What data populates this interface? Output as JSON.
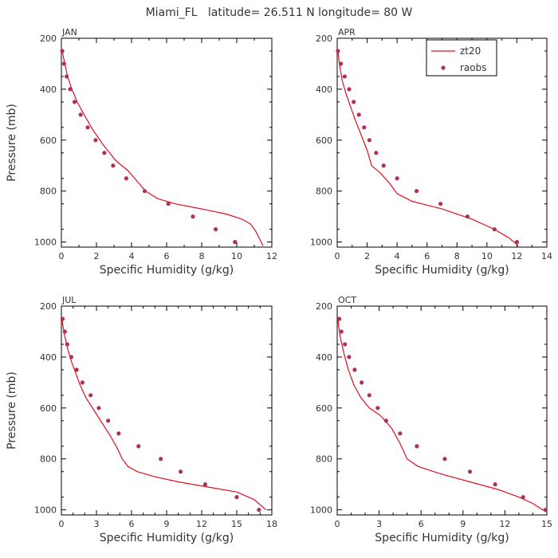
{
  "title": "Miami_FL   latitude= 26.511 N longitude= 80 W",
  "colors": {
    "model": "#e0101e",
    "obs": "#b0305a",
    "axis": "#000000"
  },
  "legend": [
    {
      "label": "zt20",
      "kind": "line"
    },
    {
      "label": "raobs",
      "kind": "marker"
    }
  ],
  "chart_data": [
    {
      "type": "line",
      "panel": "JAN",
      "xlabel": "Specific Humidity (g/kg)",
      "ylabel": "Pressure (mb)",
      "xlim": [
        0,
        12
      ],
      "xticks": [
        0,
        2,
        4,
        6,
        8,
        10,
        12
      ],
      "ylim": [
        200,
        1020
      ],
      "yticks": [
        200,
        400,
        600,
        800,
        1000
      ],
      "yreversed": true,
      "series": [
        {
          "name": "zt20",
          "kind": "line",
          "x": [
            0.05,
            0.1,
            0.2,
            0.35,
            0.6,
            0.9,
            1.3,
            1.8,
            2.4,
            3.1,
            3.8,
            4.3,
            4.8,
            5.5,
            6.5,
            8.0,
            9.4,
            10.3,
            10.8,
            11.1,
            11.5
          ],
          "y": [
            245,
            270,
            300,
            350,
            400,
            450,
            500,
            560,
            620,
            680,
            720,
            760,
            800,
            830,
            850,
            870,
            890,
            910,
            930,
            960,
            1015
          ]
        },
        {
          "name": "raobs",
          "kind": "scatter",
          "x": [
            0.05,
            0.15,
            0.3,
            0.5,
            0.75,
            1.1,
            1.5,
            1.95,
            2.45,
            2.95,
            3.7,
            4.75,
            6.1,
            7.5,
            8.8,
            9.9
          ],
          "y": [
            250,
            300,
            350,
            400,
            450,
            500,
            550,
            600,
            650,
            700,
            750,
            800,
            850,
            900,
            950,
            1000
          ]
        }
      ]
    },
    {
      "type": "line",
      "panel": "APR",
      "xlabel": "Specific Humidity (g/kg)",
      "ylabel": "",
      "xlim": [
        0,
        14
      ],
      "xticks": [
        0,
        2,
        4,
        6,
        8,
        10,
        12,
        14
      ],
      "ylim": [
        200,
        1020
      ],
      "yticks": [
        200,
        400,
        600,
        800,
        1000
      ],
      "yreversed": true,
      "series": [
        {
          "name": "zt20",
          "kind": "line",
          "x": [
            0.05,
            0.1,
            0.2,
            0.35,
            0.6,
            0.9,
            1.2,
            1.6,
            2.0,
            2.3,
            2.9,
            3.5,
            4.0,
            5.0,
            7.0,
            9.0,
            10.5,
            11.5,
            12.1
          ],
          "y": [
            250,
            280,
            320,
            370,
            420,
            470,
            520,
            580,
            640,
            700,
            730,
            770,
            810,
            840,
            870,
            910,
            950,
            985,
            1015
          ]
        },
        {
          "name": "raobs",
          "kind": "scatter",
          "x": [
            0.05,
            0.25,
            0.5,
            0.8,
            1.1,
            1.45,
            1.8,
            2.15,
            2.6,
            3.1,
            4.0,
            5.3,
            6.9,
            8.7,
            10.5,
            12.0
          ],
          "y": [
            250,
            300,
            350,
            400,
            450,
            500,
            550,
            600,
            650,
            700,
            750,
            800,
            850,
            900,
            950,
            1000
          ]
        }
      ]
    },
    {
      "type": "line",
      "panel": "JUL",
      "xlabel": "Specific Humidity (g/kg)",
      "ylabel": "Pressure (mb)",
      "xlim": [
        0,
        18
      ],
      "xticks": [
        0,
        3,
        6,
        9,
        12,
        15,
        18
      ],
      "ylim": [
        200,
        1020
      ],
      "yticks": [
        200,
        400,
        600,
        800,
        1000
      ],
      "yreversed": true,
      "series": [
        {
          "name": "zt20",
          "kind": "line",
          "x": [
            0.05,
            0.1,
            0.25,
            0.5,
            0.8,
            1.2,
            1.6,
            2.1,
            2.8,
            3.5,
            4.2,
            4.8,
            5.2,
            5.7,
            6.5,
            8.0,
            10.0,
            12.5,
            15.0,
            16.5,
            17.5
          ],
          "y": [
            245,
            270,
            310,
            360,
            410,
            460,
            510,
            560,
            610,
            660,
            710,
            760,
            800,
            830,
            850,
            870,
            890,
            910,
            930,
            960,
            1000
          ]
        },
        {
          "name": "raobs",
          "kind": "scatter",
          "x": [
            0.1,
            0.3,
            0.5,
            0.85,
            1.3,
            1.8,
            2.5,
            3.2,
            4.0,
            4.9,
            6.6,
            8.5,
            10.2,
            12.3,
            15.0,
            16.9
          ],
          "y": [
            250,
            300,
            350,
            400,
            450,
            500,
            550,
            600,
            650,
            700,
            750,
            800,
            850,
            900,
            950,
            1000
          ]
        }
      ]
    },
    {
      "type": "line",
      "panel": "OCT",
      "xlabel": "Specific Humidity (g/kg)",
      "ylabel": "",
      "xlim": [
        0,
        15
      ],
      "xticks": [
        0,
        3,
        6,
        9,
        12,
        15
      ],
      "ylim": [
        200,
        1020
      ],
      "yticks": [
        200,
        400,
        600,
        800,
        1000
      ],
      "yreversed": true,
      "series": [
        {
          "name": "zt20",
          "kind": "line",
          "x": [
            0.05,
            0.1,
            0.25,
            0.5,
            0.8,
            1.2,
            1.7,
            2.3,
            3.1,
            3.9,
            4.5,
            5.0,
            5.8,
            7.5,
            9.5,
            11.5,
            13.0,
            14.0,
            14.7
          ],
          "y": [
            250,
            280,
            330,
            390,
            450,
            510,
            560,
            600,
            630,
            680,
            740,
            800,
            830,
            860,
            890,
            920,
            950,
            975,
            1000
          ]
        },
        {
          "name": "raobs",
          "kind": "scatter",
          "x": [
            0.15,
            0.3,
            0.55,
            0.85,
            1.25,
            1.75,
            2.3,
            2.9,
            3.5,
            4.5,
            5.7,
            7.7,
            9.5,
            11.3,
            13.3,
            14.9
          ],
          "y": [
            250,
            300,
            350,
            400,
            450,
            500,
            550,
            600,
            650,
            700,
            750,
            800,
            850,
            900,
            950,
            1000
          ]
        }
      ]
    }
  ]
}
